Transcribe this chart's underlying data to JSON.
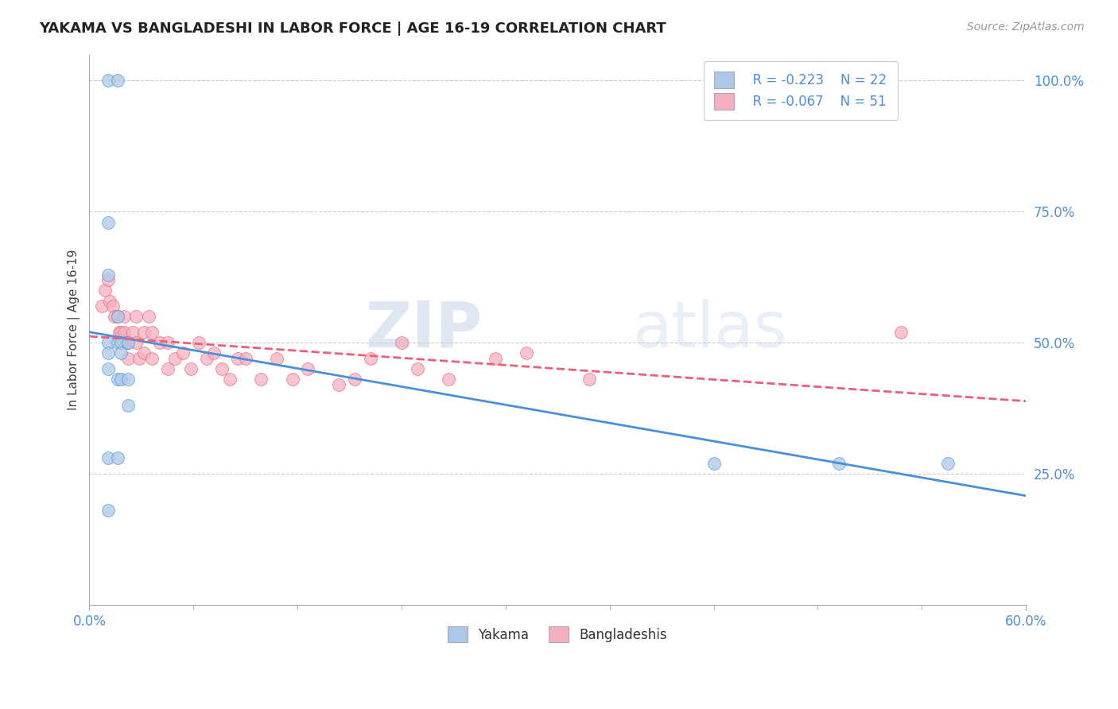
{
  "title": "YAKAMA VS BANGLADESHI IN LABOR FORCE | AGE 16-19 CORRELATION CHART",
  "source_text": "Source: ZipAtlas.com",
  "ylabel": "In Labor Force | Age 16-19",
  "xlim": [
    0.0,
    0.6
  ],
  "ylim": [
    0.0,
    1.05
  ],
  "bg_color": "#ffffff",
  "grid_color": "#cccccc",
  "yakama_color": "#adc9e8",
  "bangladeshi_color": "#f5b0c0",
  "yakama_line_color": "#4a90d9",
  "bangladeshi_line_color": "#e8607a",
  "legend_R_yakama": "R = -0.223",
  "legend_N_yakama": "N = 22",
  "legend_R_bangladeshi": "R = -0.067",
  "legend_N_bangladeshi": "N = 51",
  "watermark_zip": "ZIP",
  "watermark_atlas": "atlas",
  "yakama_points": [
    [
      0.012,
      1.0
    ],
    [
      0.018,
      1.0
    ],
    [
      0.012,
      0.73
    ],
    [
      0.012,
      0.63
    ],
    [
      0.018,
      0.55
    ],
    [
      0.012,
      0.5
    ],
    [
      0.018,
      0.5
    ],
    [
      0.02,
      0.5
    ],
    [
      0.025,
      0.5
    ],
    [
      0.012,
      0.48
    ],
    [
      0.02,
      0.48
    ],
    [
      0.012,
      0.45
    ],
    [
      0.018,
      0.43
    ],
    [
      0.02,
      0.43
    ],
    [
      0.025,
      0.43
    ],
    [
      0.025,
      0.38
    ],
    [
      0.012,
      0.28
    ],
    [
      0.018,
      0.28
    ],
    [
      0.012,
      0.18
    ],
    [
      0.4,
      0.27
    ],
    [
      0.48,
      0.27
    ],
    [
      0.55,
      0.27
    ]
  ],
  "bangladeshi_points": [
    [
      0.008,
      0.57
    ],
    [
      0.01,
      0.6
    ],
    [
      0.012,
      0.62
    ],
    [
      0.013,
      0.58
    ],
    [
      0.015,
      0.57
    ],
    [
      0.016,
      0.55
    ],
    [
      0.018,
      0.55
    ],
    [
      0.019,
      0.52
    ],
    [
      0.02,
      0.52
    ],
    [
      0.02,
      0.5
    ],
    [
      0.022,
      0.55
    ],
    [
      0.022,
      0.52
    ],
    [
      0.023,
      0.5
    ],
    [
      0.025,
      0.5
    ],
    [
      0.025,
      0.47
    ],
    [
      0.028,
      0.52
    ],
    [
      0.03,
      0.55
    ],
    [
      0.03,
      0.5
    ],
    [
      0.032,
      0.47
    ],
    [
      0.035,
      0.52
    ],
    [
      0.035,
      0.48
    ],
    [
      0.038,
      0.55
    ],
    [
      0.04,
      0.52
    ],
    [
      0.04,
      0.47
    ],
    [
      0.045,
      0.5
    ],
    [
      0.05,
      0.5
    ],
    [
      0.05,
      0.45
    ],
    [
      0.055,
      0.47
    ],
    [
      0.06,
      0.48
    ],
    [
      0.065,
      0.45
    ],
    [
      0.07,
      0.5
    ],
    [
      0.075,
      0.47
    ],
    [
      0.08,
      0.48
    ],
    [
      0.085,
      0.45
    ],
    [
      0.09,
      0.43
    ],
    [
      0.095,
      0.47
    ],
    [
      0.1,
      0.47
    ],
    [
      0.11,
      0.43
    ],
    [
      0.12,
      0.47
    ],
    [
      0.13,
      0.43
    ],
    [
      0.14,
      0.45
    ],
    [
      0.16,
      0.42
    ],
    [
      0.17,
      0.43
    ],
    [
      0.18,
      0.47
    ],
    [
      0.2,
      0.5
    ],
    [
      0.21,
      0.45
    ],
    [
      0.23,
      0.43
    ],
    [
      0.26,
      0.47
    ],
    [
      0.28,
      0.48
    ],
    [
      0.32,
      0.43
    ],
    [
      0.52,
      0.52
    ]
  ]
}
